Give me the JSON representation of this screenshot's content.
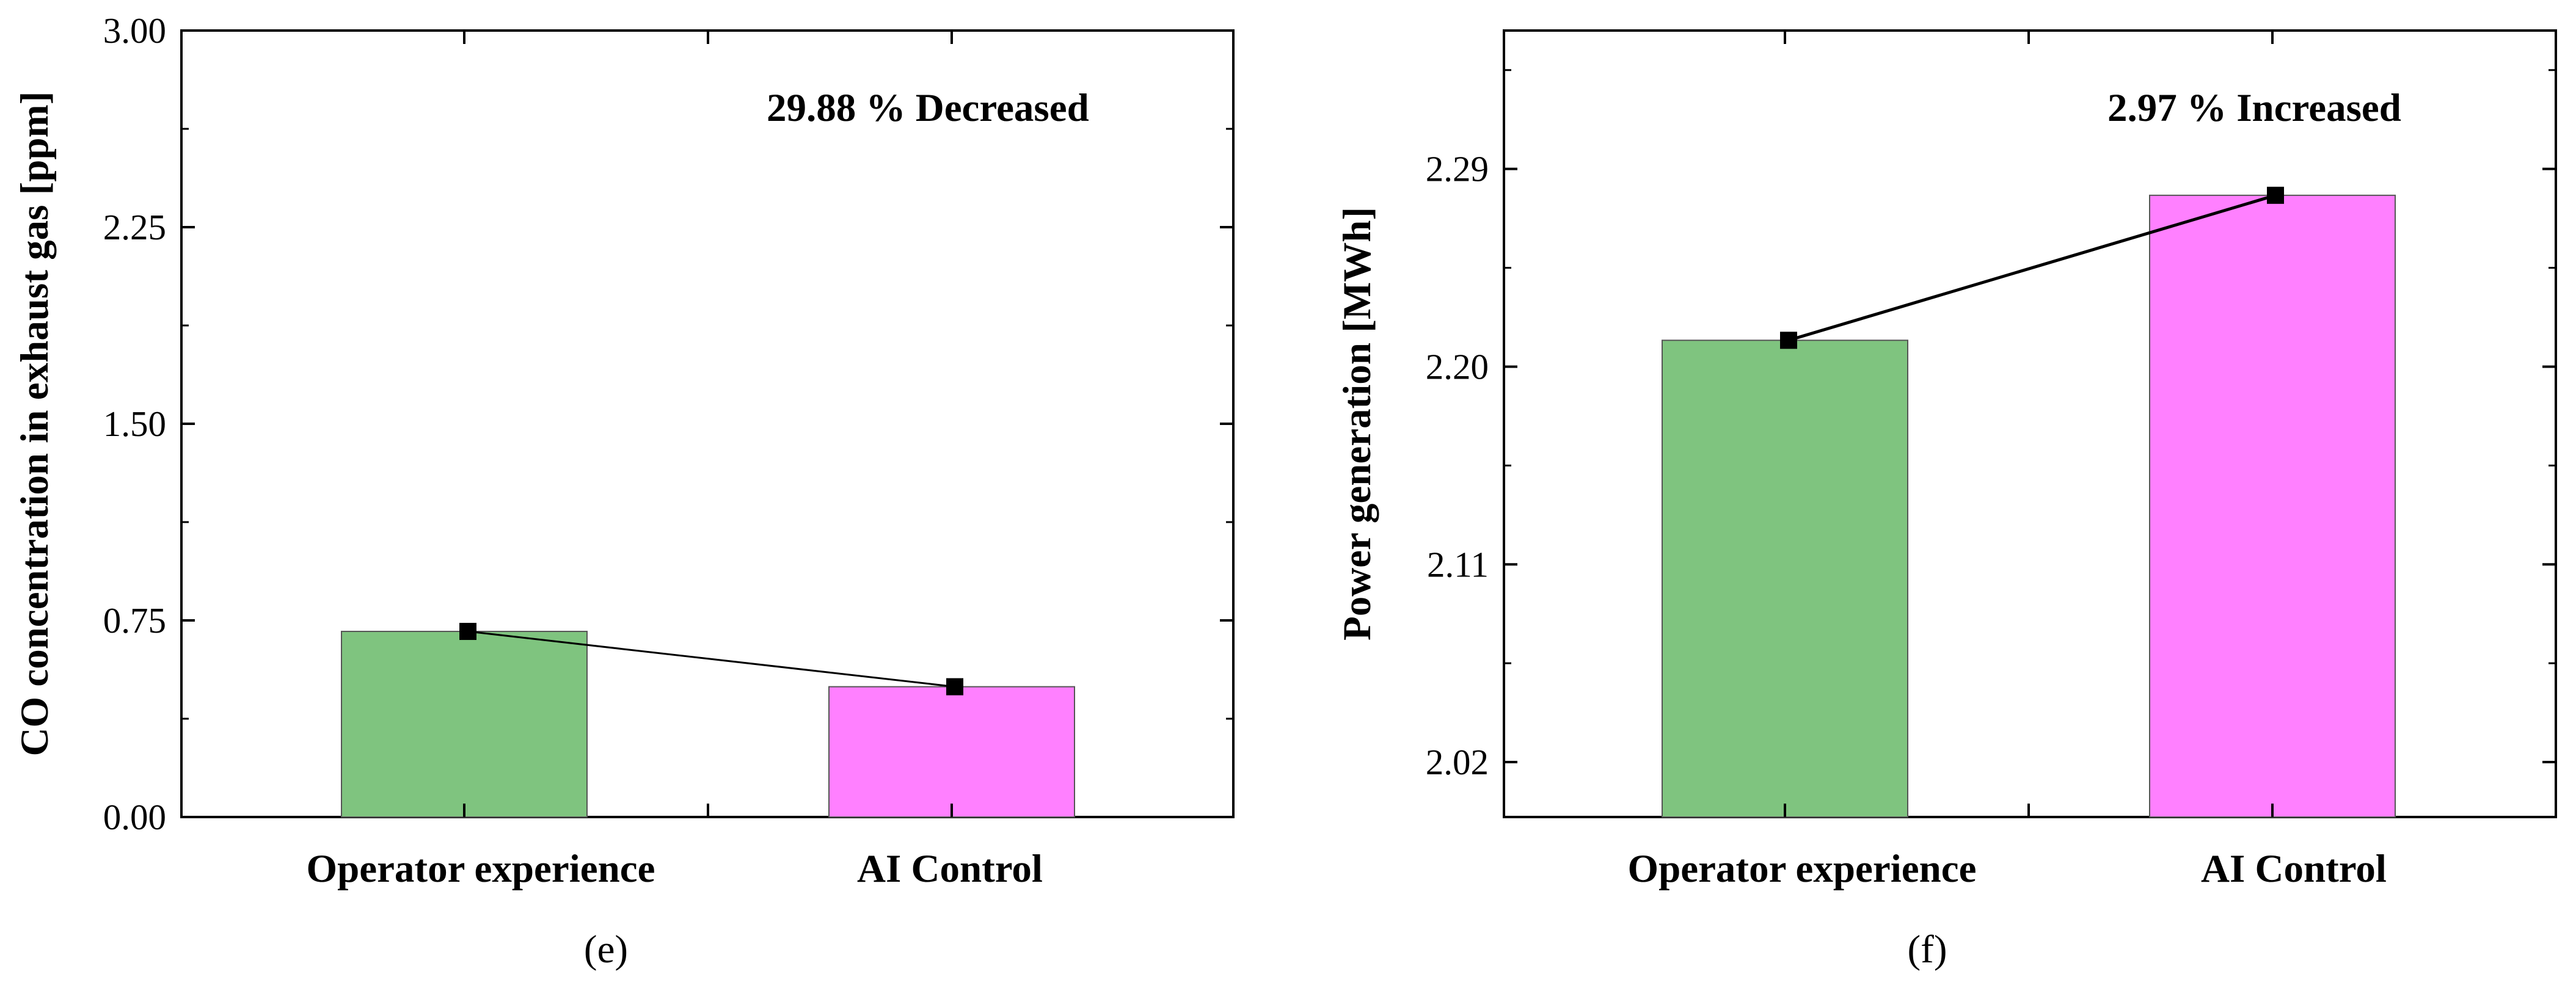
{
  "chart_data": [
    {
      "type": "bar",
      "panel_label": "(e)",
      "categories": [
        "Operator experience",
        "AI Control"
      ],
      "values": [
        0.708,
        0.497
      ],
      "bar_colors": [
        "#7fc47f",
        "#ff80ff"
      ],
      "trend_line": true,
      "ylabel": "CO concentration in exhaust gas [ppm]",
      "xlabel": "",
      "ylim": [
        0,
        3
      ],
      "yticks": [
        "0.00",
        "0.75",
        "1.50",
        "2.25",
        "3.00"
      ],
      "yticks_values": [
        0,
        0.75,
        1.5,
        2.25,
        3.0
      ],
      "annotation": "29.88 % Decreased"
    },
    {
      "type": "bar",
      "panel_label": "(f)",
      "categories": [
        "Operator experience",
        "AI Control"
      ],
      "values": [
        2.212,
        2.278
      ],
      "bar_colors": [
        "#7fc47f",
        "#ff80ff"
      ],
      "trend_line": true,
      "ylabel": "Power generation [MWh]",
      "xlabel": "",
      "ylim": [
        1.995,
        2.353
      ],
      "yticks": [
        "2.02",
        "2.11",
        "2.20",
        "2.29"
      ],
      "yticks_values": [
        2.02,
        2.11,
        2.2,
        2.29
      ],
      "annotation": "2.97 % Increased"
    }
  ]
}
